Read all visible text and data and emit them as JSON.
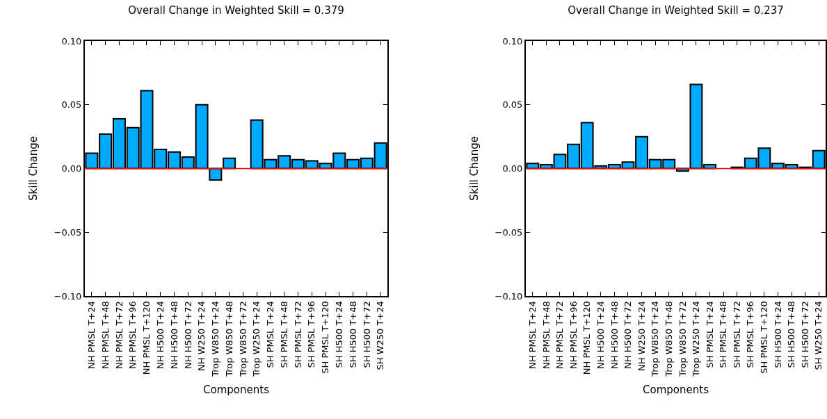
{
  "chart_data": [
    {
      "type": "bar",
      "title": "Overall Change in Weighted Skill = 0.379",
      "xlabel": "Components",
      "ylabel": "Skill Change",
      "categories": [
        "NH PMSL T+24",
        "NH PMSL T+48",
        "NH PMSL T+72",
        "NH PMSL T+96",
        "NH PMSL T+120",
        "NH H500 T+24",
        "NH H500 T+48",
        "NH H500 T+72",
        "NH W250 T+24",
        "Trop W850 T+24",
        "Trop W850 T+48",
        "Trop W850 T+72",
        "Trop W250 T+24",
        "SH PMSL T+24",
        "SH PMSL T+48",
        "SH PMSL T+72",
        "SH PMSL T+96",
        "SH PMSL T+120",
        "SH H500 T+24",
        "SH H500 T+48",
        "SH H500 T+72",
        "SH W250 T+24"
      ],
      "values": [
        0.012,
        0.027,
        0.039,
        0.032,
        0.061,
        0.015,
        0.013,
        0.009,
        0.05,
        -0.009,
        0.008,
        null,
        0.038,
        0.007,
        0.01,
        0.007,
        0.006,
        0.004,
        0.012,
        0.007,
        0.008,
        0.02
      ],
      "color": "#00aaff",
      "ylim": [
        -0.1,
        0.1
      ],
      "yticks": [
        {
          "value": -0.1,
          "label": "−0.10"
        },
        {
          "value": -0.05,
          "label": "−0.05"
        },
        {
          "value": 0,
          "label": "0.00"
        },
        {
          "value": 0.05,
          "label": "0.05"
        },
        {
          "value": 0.1,
          "label": "0.10"
        }
      ],
      "ref_lines": [
        {
          "axis": "y",
          "value": 0,
          "color": "#ff0000"
        }
      ],
      "grid": false
    },
    {
      "type": "bar",
      "title": "Overall Change in Weighted Skill = 0.237",
      "xlabel": "Components",
      "ylabel": "Skill Change",
      "categories": [
        "NH PMSL T+24",
        "NH PMSL T+48",
        "NH PMSL T+72",
        "NH PMSL T+96",
        "NH PMSL T+120",
        "NH H500 T+24",
        "NH H500 T+48",
        "NH H500 T+72",
        "NH W250 T+24",
        "Trop W850 T+24",
        "Trop W850 T+48",
        "Trop W850 T+72",
        "Trop W250 T+24",
        "SH PMSL T+24",
        "SH PMSL T+48",
        "SH PMSL T+72",
        "SH PMSL T+96",
        "SH PMSL T+120",
        "SH H500 T+24",
        "SH H500 T+48",
        "SH H500 T+72",
        "SH W250 T+24"
      ],
      "values": [
        0.004,
        0.003,
        0.011,
        0.019,
        0.036,
        0.002,
        0.003,
        0.005,
        0.025,
        0.007,
        0.007,
        -0.002,
        0.066,
        0.003,
        null,
        0.001,
        0.008,
        0.016,
        0.004,
        0.003,
        0.001,
        0.014
      ],
      "color": "#00aaff",
      "ylim": [
        -0.1,
        0.1
      ],
      "yticks": [
        {
          "value": -0.1,
          "label": "−0.10"
        },
        {
          "value": -0.05,
          "label": "−0.05"
        },
        {
          "value": 0,
          "label": "0.00"
        },
        {
          "value": 0.05,
          "label": "0.05"
        },
        {
          "value": 0.1,
          "label": "0.10"
        }
      ],
      "ref_lines": [
        {
          "axis": "y",
          "value": 0,
          "color": "#ff0000"
        }
      ],
      "grid": false
    }
  ]
}
